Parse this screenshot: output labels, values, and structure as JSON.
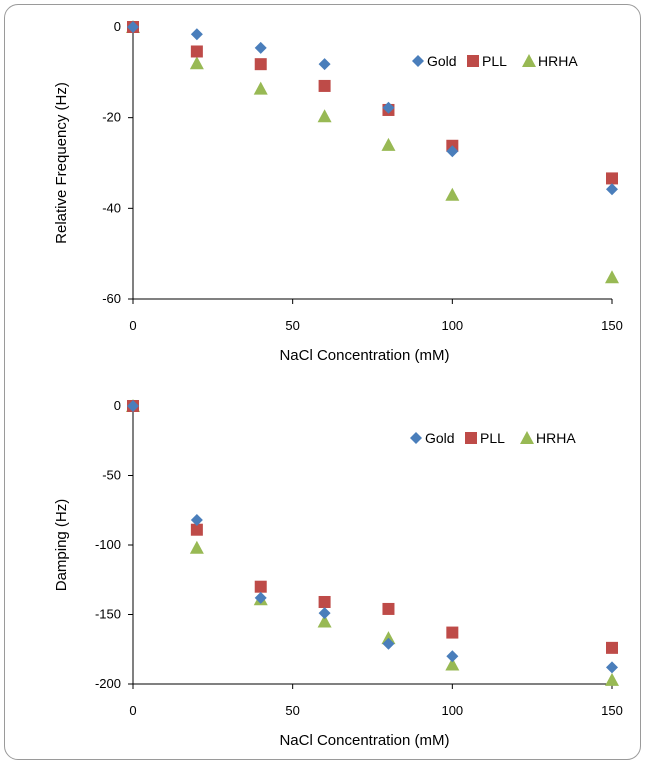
{
  "colors": {
    "Gold": "#4a7ebb",
    "PLL": "#be4b48",
    "HRHA": "#98b954",
    "axis": "#000000"
  },
  "chart_data": [
    {
      "type": "scatter",
      "title": "",
      "xlabel": "NaCl Concentration (mM)",
      "ylabel": "Relative Frequency (Hz)",
      "xlim": [
        0,
        150
      ],
      "ylim": [
        -60,
        0
      ],
      "xticks": [
        0,
        50,
        100,
        150
      ],
      "yticks": [
        0,
        -20,
        -40,
        -60
      ],
      "legend": "top-right",
      "grid": false,
      "x": [
        0,
        20,
        40,
        60,
        80,
        100,
        150
      ],
      "series": [
        {
          "name": "Gold",
          "marker": "diamond",
          "values": [
            0,
            -1.6,
            -4.6,
            -8.2,
            -17.8,
            -27.4,
            -35.8
          ]
        },
        {
          "name": "PLL",
          "marker": "square",
          "values": [
            0,
            -5.4,
            -8.2,
            -13,
            -18.3,
            -26.2,
            -33.4
          ]
        },
        {
          "name": "HRHA",
          "marker": "triangle",
          "values": [
            0,
            -8,
            -13.6,
            -19.7,
            -26,
            -37,
            -55.2
          ]
        }
      ]
    },
    {
      "type": "scatter",
      "title": "",
      "xlabel": "NaCl Concentration (mM)",
      "ylabel": "Damping (Hz)",
      "xlim": [
        0,
        150
      ],
      "ylim": [
        -200,
        0
      ],
      "xticks": [
        0,
        50,
        100,
        150
      ],
      "yticks": [
        0,
        -50,
        -100,
        -150,
        -200
      ],
      "legend": "top-right",
      "grid": false,
      "x": [
        0,
        20,
        40,
        60,
        80,
        100,
        150
      ],
      "series": [
        {
          "name": "Gold",
          "marker": "diamond",
          "values": [
            0,
            -82,
            -138,
            -149,
            -171,
            -180,
            -188
          ]
        },
        {
          "name": "PLL",
          "marker": "square",
          "values": [
            0,
            -89,
            -130,
            -141,
            -146,
            -163,
            -174
          ]
        },
        {
          "name": "HRHA",
          "marker": "triangle",
          "values": [
            0,
            -102,
            -139,
            -155,
            -167,
            -186,
            -197
          ]
        }
      ]
    }
  ]
}
